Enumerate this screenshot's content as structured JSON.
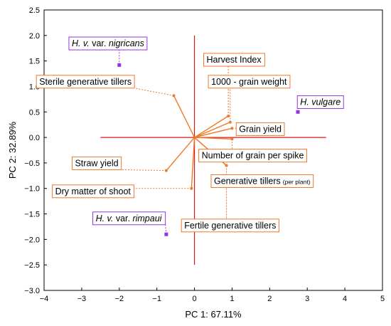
{
  "chart_data": {
    "type": "scatter",
    "title": "",
    "xlabel": "PC 1: 67.11%",
    "ylabel": "PC 2: 32.89%",
    "xlim": [
      -4,
      5
    ],
    "ylim": [
      -3,
      2.5
    ],
    "xticks": [
      "−4",
      "−3",
      "−2",
      "−1",
      "0",
      "1",
      "2",
      "3",
      "4",
      "5"
    ],
    "yticks": [
      "−3.0",
      "−2.5",
      "−2.0",
      "−1.5",
      "−1.0",
      "−0.5",
      "0.0",
      "0.5",
      "1.0",
      "1.5",
      "2.0",
      "2.5"
    ],
    "grid": false,
    "variables": [
      {
        "label": "Sterile generative tillers",
        "x": -0.55,
        "y": 0.82,
        "lx": -2.9,
        "ly": 1.1
      },
      {
        "label": "Harvest Index",
        "x": 0.9,
        "y": 0.42,
        "lx": 1.05,
        "ly": 1.53
      },
      {
        "label": "1000 - grain weight",
        "x": 0.95,
        "y": 0.3,
        "lx": 1.45,
        "ly": 1.1
      },
      {
        "label": "Grain yield",
        "x": 1.0,
        "y": 0.18,
        "lx": 1.75,
        "ly": 0.17
      },
      {
        "label": "Number of grain per spike",
        "x": 1.0,
        "y": -0.03,
        "lx": 1.55,
        "ly": -0.35
      },
      {
        "label": "Generative tillers",
        "small": "(per plant)",
        "x": 0.85,
        "y": -0.55,
        "lx": 1.8,
        "ly": -0.85
      },
      {
        "label": "Fertile generative tillers",
        "x": 0.85,
        "y": -0.55,
        "lx": 0.95,
        "ly": -1.72
      },
      {
        "label": "Straw yield",
        "x": -0.75,
        "y": -0.65,
        "lx": -2.6,
        "ly": -0.5
      },
      {
        "label": "Dry matter of shoot",
        "x": -0.08,
        "y": -1.0,
        "lx": -2.7,
        "ly": -1.05
      }
    ],
    "genotypes": [
      {
        "label": "H. v. var. nigricans",
        "x": -2.0,
        "y": 1.42,
        "lx": -2.3,
        "ly": 1.85
      },
      {
        "label": "H. vulgare",
        "x": 2.75,
        "y": 0.5,
        "lx": 3.35,
        "ly": 0.7
      },
      {
        "label": "H. v. var. rimpaui",
        "x": -0.75,
        "y": -1.9,
        "lx": -1.75,
        "ly": -1.58
      }
    ],
    "colors": {
      "vector": "#f07828",
      "marker": "#9632e6",
      "axis_cross": "#d11a1a",
      "variable_box": "#f07828",
      "genotype_box": "#9632e6"
    }
  }
}
